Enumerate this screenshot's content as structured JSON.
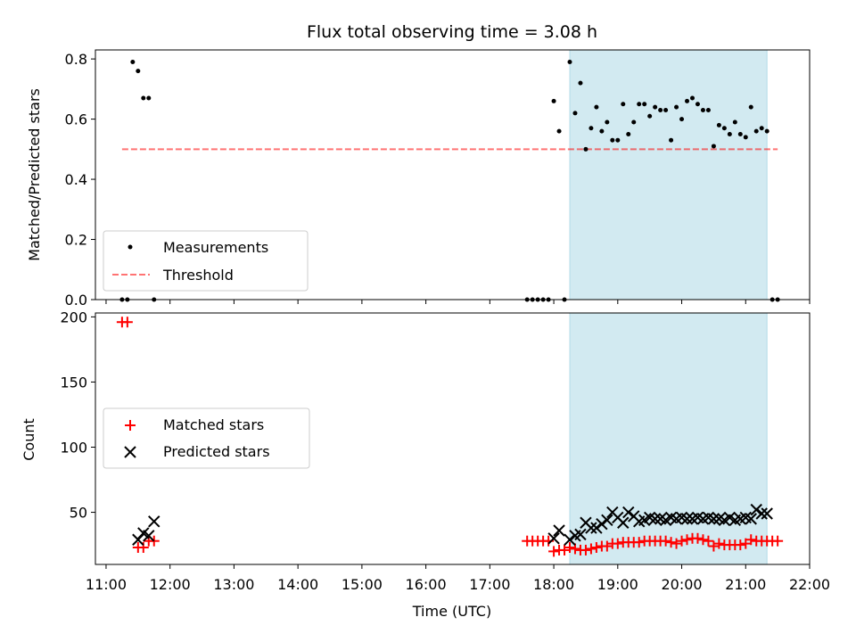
{
  "chart_data": [
    {
      "type": "scatter",
      "title": "Flux total observing time = 3.08 h",
      "xlabel": "",
      "ylabel": "Matched/Predicted stars",
      "xlim": [
        "10:50",
        "22:00"
      ],
      "ylim": [
        0,
        0.83
      ],
      "yticks": [
        0.0,
        0.2,
        0.4,
        0.6,
        0.8
      ],
      "ytick_labels": [
        "0.0",
        "0.2",
        "0.4",
        "0.6",
        "0.8"
      ],
      "grid": false,
      "legend_position": "lower-left",
      "shaded_span": {
        "start": "18:15",
        "end": "21:20",
        "color": "#add8e6"
      },
      "threshold": {
        "name": "Threshold",
        "value": 0.5,
        "start": "11:15",
        "end": "21:30",
        "color": "#ff0000",
        "style": "dashed"
      },
      "series": [
        {
          "name": "Measurements",
          "color": "#000000",
          "marker": "dot",
          "x": [
            "11:15",
            "11:20",
            "11:25",
            "11:30",
            "11:35",
            "11:40",
            "11:45",
            "17:35",
            "17:40",
            "17:45",
            "17:50",
            "17:55",
            "18:00",
            "18:05",
            "18:10",
            "18:15",
            "18:20",
            "18:25",
            "18:30",
            "18:35",
            "18:40",
            "18:45",
            "18:50",
            "18:55",
            "19:00",
            "19:05",
            "19:10",
            "19:15",
            "19:20",
            "19:25",
            "19:30",
            "19:35",
            "19:40",
            "19:45",
            "19:50",
            "19:55",
            "20:00",
            "20:05",
            "20:10",
            "20:15",
            "20:20",
            "20:25",
            "20:30",
            "20:35",
            "20:40",
            "20:45",
            "20:50",
            "20:55",
            "21:00",
            "21:05",
            "21:10",
            "21:15",
            "21:20",
            "21:25",
            "21:30"
          ],
          "y": [
            0,
            0,
            0.79,
            0.76,
            0.67,
            0.67,
            0,
            0,
            0,
            0,
            0,
            0,
            0.66,
            0.56,
            0,
            0.79,
            0.62,
            0.72,
            0.5,
            0.57,
            0.64,
            0.56,
            0.59,
            0.53,
            0.53,
            0.65,
            0.55,
            0.59,
            0.65,
            0.65,
            0.61,
            0.64,
            0.63,
            0.63,
            0.53,
            0.64,
            0.6,
            0.66,
            0.67,
            0.65,
            0.63,
            0.63,
            0.51,
            0.58,
            0.57,
            0.55,
            0.59,
            0.55,
            0.54,
            0.64,
            0.56,
            0.57,
            0.56,
            0,
            0
          ]
        }
      ]
    },
    {
      "type": "scatter",
      "title": "",
      "xlabel": "Time (UTC)",
      "ylabel": "Count",
      "xlim": [
        "10:50",
        "22:00"
      ],
      "ylim": [
        10,
        203
      ],
      "yticks": [
        50,
        100,
        150,
        200
      ],
      "ytick_labels": [
        "50",
        "100",
        "150",
        "200"
      ],
      "xticks": [
        "11:00",
        "12:00",
        "13:00",
        "14:00",
        "15:00",
        "16:00",
        "17:00",
        "18:00",
        "19:00",
        "20:00",
        "21:00",
        "22:00"
      ],
      "grid": false,
      "legend_position": "center-left",
      "shaded_span": {
        "start": "18:15",
        "end": "21:20",
        "color": "#add8e6"
      },
      "series": [
        {
          "name": "Matched stars",
          "color": "#ff0000",
          "marker": "plus",
          "x": [
            "11:15",
            "11:20",
            "11:30",
            "11:35",
            "11:40",
            "11:45",
            "17:35",
            "17:40",
            "17:45",
            "17:50",
            "17:55",
            "18:00",
            "18:05",
            "18:10",
            "18:15",
            "18:20",
            "18:25",
            "18:30",
            "18:35",
            "18:40",
            "18:45",
            "18:50",
            "18:55",
            "19:00",
            "19:05",
            "19:10",
            "19:15",
            "19:20",
            "19:25",
            "19:30",
            "19:35",
            "19:40",
            "19:45",
            "19:50",
            "19:55",
            "20:00",
            "20:05",
            "20:10",
            "20:15",
            "20:20",
            "20:25",
            "20:30",
            "20:35",
            "20:40",
            "20:45",
            "20:50",
            "20:55",
            "21:00",
            "21:05",
            "21:10",
            "21:15",
            "21:20",
            "21:25",
            "21:30"
          ],
          "y": [
            196,
            196,
            23,
            23,
            28,
            28,
            28,
            28,
            28,
            28,
            28,
            20,
            21,
            21,
            23,
            22,
            21,
            21,
            22,
            23,
            24,
            24,
            26,
            26,
            27,
            27,
            27,
            27,
            28,
            28,
            28,
            28,
            28,
            27,
            26,
            28,
            29,
            30,
            30,
            29,
            28,
            24,
            26,
            25,
            25,
            25,
            25,
            26,
            29,
            28,
            28,
            28,
            28,
            28
          ]
        },
        {
          "name": "Predicted stars",
          "color": "#000000",
          "marker": "x",
          "x": [
            "11:30",
            "11:35",
            "11:40",
            "11:45",
            "18:00",
            "18:05",
            "18:15",
            "18:20",
            "18:25",
            "18:30",
            "18:35",
            "18:40",
            "18:45",
            "18:50",
            "18:55",
            "19:00",
            "19:05",
            "19:10",
            "19:15",
            "19:20",
            "19:25",
            "19:30",
            "19:35",
            "19:40",
            "19:45",
            "19:50",
            "19:55",
            "20:00",
            "20:05",
            "20:10",
            "20:15",
            "20:20",
            "20:25",
            "20:30",
            "20:35",
            "20:40",
            "20:45",
            "20:50",
            "20:55",
            "21:00",
            "21:05",
            "21:10",
            "21:15",
            "21:20"
          ],
          "y": [
            29,
            34,
            32,
            43,
            30,
            36,
            29,
            32,
            33,
            42,
            38,
            38,
            41,
            44,
            50,
            46,
            42,
            50,
            47,
            43,
            44,
            46,
            45,
            45,
            44,
            46,
            45,
            46,
            45,
            45,
            46,
            45,
            46,
            45,
            45,
            44,
            46,
            44,
            45,
            46,
            45,
            52,
            49,
            49
          ]
        }
      ]
    }
  ]
}
